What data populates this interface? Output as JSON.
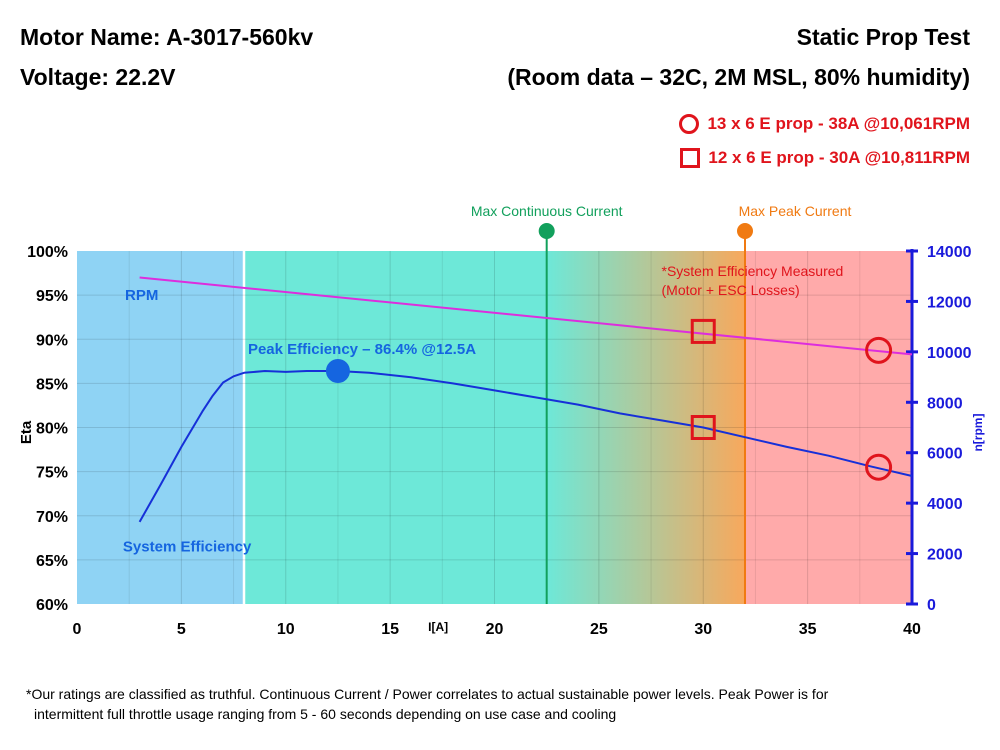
{
  "header": {
    "motor_name": "Motor Name: A-3017-560kv",
    "voltage": "Voltage: 22.2V",
    "test_title": "Static Prop Test",
    "room_data": "(Room data – 32C, 2M MSL, 80% humidity)"
  },
  "legend": {
    "circle_label": "13 x 6 E prop - 38A @10,061RPM",
    "square_label": "12 x 6 E prop - 30A @10,811RPM",
    "marker_color": "#e0141c"
  },
  "chart_data": {
    "type": "line",
    "x_axis": {
      "label": "I[A]",
      "range": [
        0,
        40
      ],
      "ticks": [
        0,
        5,
        10,
        15,
        20,
        25,
        30,
        35,
        40
      ]
    },
    "y_left": {
      "label": "Eta",
      "range": [
        60,
        100
      ],
      "ticks": [
        "60%",
        "65%",
        "70%",
        "75%",
        "80%",
        "85%",
        "90%",
        "95%",
        "100%"
      ]
    },
    "y_right": {
      "label": "n[rpm]",
      "range": [
        0,
        14000
      ],
      "ticks": [
        "0",
        "2000",
        "4000",
        "6000",
        "8000",
        "10000",
        "12000",
        "14000"
      ],
      "color": "#1a1adb"
    },
    "regions": [
      {
        "from": 0,
        "to": 8,
        "color": "#8fd3f4"
      },
      {
        "from": 8,
        "to": 22.5,
        "color": "#6de8d8"
      },
      {
        "from": 22.5,
        "to": 32,
        "color_start": "#6de8d8",
        "color_end": "#f8a85c"
      },
      {
        "from": 32,
        "to": 40,
        "color": "#ffaaaa"
      }
    ],
    "series": [
      {
        "name": "System Efficiency",
        "axis": "left",
        "color": "#1630d8",
        "x": [
          3,
          4,
          5,
          6,
          6.5,
          7,
          7.5,
          8,
          9,
          10,
          11,
          12,
          12.5,
          14,
          16,
          18,
          20,
          22,
          24,
          26,
          28,
          30,
          32,
          34,
          36,
          38,
          40
        ],
        "y": [
          69.3,
          73.5,
          77.8,
          81.8,
          83.6,
          85.1,
          85.8,
          86.2,
          86.4,
          86.3,
          86.4,
          86.4,
          86.4,
          86.2,
          85.7,
          85.0,
          84.2,
          83.4,
          82.6,
          81.6,
          80.8,
          80.0,
          78.9,
          77.8,
          76.8,
          75.6,
          74.5
        ]
      },
      {
        "name": "RPM",
        "axis": "right",
        "color": "#dd2ddd",
        "x": [
          3,
          40
        ],
        "y": [
          12950,
          9900
        ]
      }
    ],
    "vlines": [
      {
        "x": 22.5,
        "label": "Max Continuous Current",
        "color": "#12a05c"
      },
      {
        "x": 32,
        "label": "Max Peak Current",
        "color": "#f07a12"
      }
    ],
    "peak": {
      "x": 12.5,
      "y": 86.4,
      "label": "Peak Efficiency – 86.4% @12.5A",
      "color": "#1565e0"
    },
    "markers": [
      {
        "shape": "square",
        "axis": "right",
        "x": 30,
        "y": 10811
      },
      {
        "shape": "square",
        "axis": "left",
        "x": 30,
        "y": 80
      },
      {
        "shape": "circle",
        "axis": "right",
        "x": 38.4,
        "y": 10061
      },
      {
        "shape": "circle",
        "axis": "left",
        "x": 38.4,
        "y": 75.5
      }
    ],
    "annotation": [
      "*System Efficiency Measured",
      "(Motor + ESC Losses)"
    ],
    "annotation_color": "#e0141c",
    "annotation_x": 28,
    "annotation_y": 97.5,
    "series_labels": [
      {
        "text": "RPM",
        "x": 2.3,
        "y": 95,
        "color": "#1565e0"
      },
      {
        "text": "System Efficiency",
        "x": 2.2,
        "y": 66.5,
        "color": "#1565e0"
      }
    ]
  },
  "footnote": {
    "line1": "*Our ratings are classified as truthful. Continuous Current / Power correlates to actual sustainable power levels. Peak Power is for",
    "line2": "intermittent full throttle usage ranging from 5 - 60 seconds depending on use case and cooling"
  }
}
